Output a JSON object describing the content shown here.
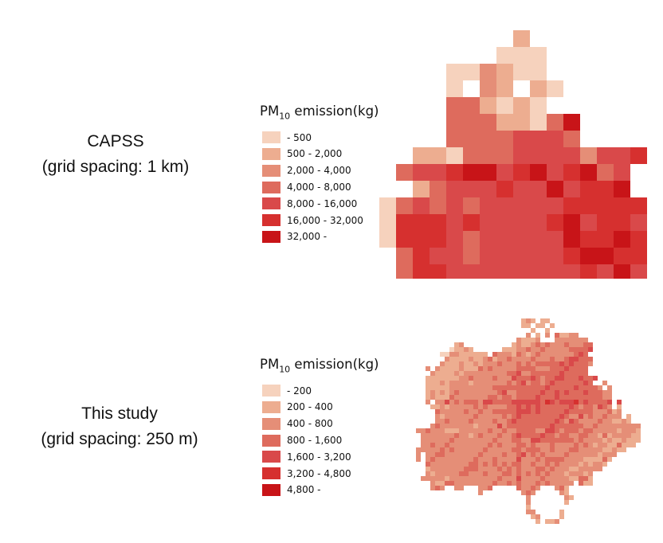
{
  "colors": [
    "#f6d2bd",
    "#edad90",
    "#e58e77",
    "#de6b5d",
    "#d9494a",
    "#d6302f",
    "#c81418"
  ],
  "panels": [
    {
      "caption": [
        "CAPSS",
        "(grid spacing: 1 km)"
      ],
      "legend_title": "PM",
      "legend_sub": "10",
      "legend_title_rest": " emission(kg)",
      "legend_items": [
        " - 500",
        "500 - 2,000",
        "2,000 - 4,000",
        "4,000 - 8,000",
        "8,000 - 16,000",
        "16,000 - 32,000",
        "32,000 -"
      ]
    },
    {
      "caption": [
        "This study",
        "(grid spacing: 250 m)"
      ],
      "legend_title": "PM",
      "legend_sub": "10",
      "legend_title_rest": " emission(kg)",
      "legend_items": [
        " - 200",
        "200 - 400",
        "400 - 800",
        "800 - 1,600",
        "1,600 - 3,200",
        "3,200 - 4,800",
        "4,800 -"
      ]
    }
  ],
  "top_grid": [
    "........1.......",
    ".......000......",
    "....002100......",
    "....0.21.10.....",
    "....331010......",
    "....33311036....",
    "....33334443....",
    "..11033344442445",
    ".34456645645634.",
    "..1344454464556.",
    "0343434444455555",
    "0555454444564554",
    "0555434444465565",
    ".354434444456655",
    ".355444444445464",
    "...4342524353454",
    "...4454342544434",
    "...6421334542334",
    ".....44055433...",
    ".....44125641..."
  ]
}
